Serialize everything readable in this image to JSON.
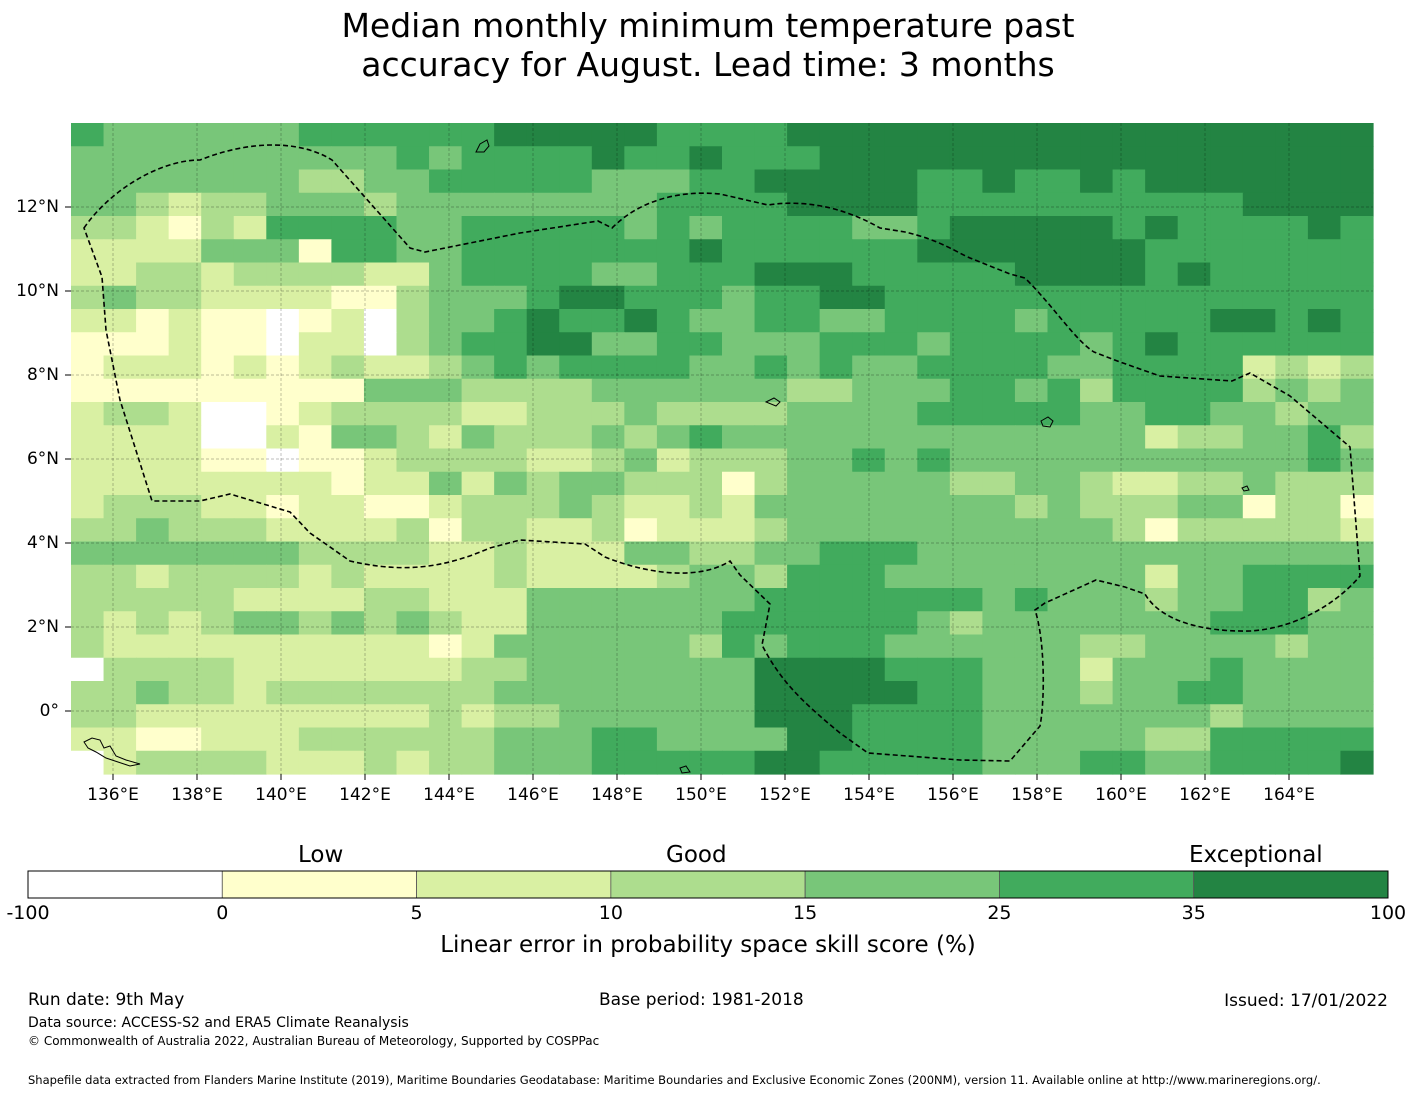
{
  "title_lines": [
    "Median monthly minimum temperature past",
    "accuracy for August. Lead time: 3 months"
  ],
  "map": {
    "lon_range": [
      135,
      166
    ],
    "lat_range": [
      -1.5,
      14
    ],
    "lon_ticks": [
      136,
      138,
      140,
      142,
      144,
      146,
      148,
      150,
      152,
      154,
      156,
      158,
      160,
      162,
      164
    ],
    "lat_ticks": [
      0,
      2,
      4,
      6,
      8,
      10,
      12
    ],
    "lon_tick_labels": [
      "136°E",
      "138°E",
      "140°E",
      "142°E",
      "144°E",
      "146°E",
      "148°E",
      "150°E",
      "152°E",
      "154°E",
      "156°E",
      "158°E",
      "160°E",
      "162°E",
      "164°E"
    ],
    "lat_tick_labels": [
      "0°",
      "2°N",
      "4°N",
      "6°N",
      "8°N",
      "10°N",
      "12°N"
    ],
    "grid_on": true,
    "eez_boundary": "dashed black line"
  },
  "colorbar": {
    "categories": [
      "Low",
      "Good",
      "Exceptional"
    ],
    "tick_labels": [
      "-100",
      "0",
      "5",
      "10",
      "15",
      "25",
      "35",
      "100"
    ],
    "colors": [
      "#ffffff",
      "#ffffcc",
      "#d9f0a3",
      "#addd8e",
      "#78c679",
      "#41ab5d",
      "#238443"
    ],
    "label": "Linear error in probability space skill score (%)"
  },
  "footer": {
    "run_date": "Run date: 9th May",
    "base_period": "Base period: 1981-2018",
    "issued": "Issued: 17/01/2022",
    "data_source": "Data source: ACCESS-S2 and ERA5 Climate Reanalysis",
    "copyright": "© Commonwealth of Australia 2022, Australian Bureau of Meteorology, Supported by COSPPac",
    "shapefile": "Shapefile data extracted from Flanders Marine Institute (2019), Maritime Boundaries Geodatabase: Maritime Boundaries and Exclusive Economic Zones (200NM), version 11. Available online at http://www.marineregions.org/."
  },
  "chart_data": {
    "type": "heatmap",
    "title": "Median monthly minimum temperature past accuracy for August. Lead time: 3 months",
    "xlabel": "",
    "ylabel": "",
    "xlim": [
      135,
      166
    ],
    "ylim": [
      -1.5,
      14
    ],
    "legend": "bottom",
    "colorbar_label": "Linear error in probability space skill score (%)",
    "bins": [
      -100,
      0,
      5,
      10,
      15,
      25,
      35,
      100
    ],
    "cell_size_deg": 0.833,
    "value_encoding": "bin index 0-6 matching colorbar intervals",
    "rows_north_to_south": [
      "5444444555555666665555666666666666666666",
      "4444444444545555655655566666666666666666",
      "4444444334455555444556666655655656666666",
      "4432334443444444445555666655555555556666",
      "3321325555445555545455554456666656555565",
      "2222444155445555555655555566666665555555",
      "2233233332245555445556665555566665655555",
      "3433222211344456655545566555555555555555",
      "2212110120344565565445544555545555566565",
      "1112110220345566445544455545555456555555",
      "1222121232234545555445454455554455552323",
      "1111111114443333444444334445545355553434",
      "2332001233332233343333444455555445544344",
      "2222002144324333434544444444444442334453",
      "2222110112333322342333445454444444444454",
      "2222222212242434433313444443344322334333",
      "2333221221123334322324444444434333441331",
      "3343332222313322312223444444444431333332",
      "4444444333322322244334455544444444444444",
      "3323333232222322223443555444444442445555",
      "3333322223322244444445555555454443445534",
      "3232344343432244444455555543444444455544",
      "3222222222212444444354555444444334444344",
      "0333322222223344444446666555444244454444",
      "3343323333333444444446666655444344554444",
      "3322222222232334444446665555444444434444",
      "2211222333333444554444665555444443355555",
      "0233332223233444555556655555444554455556"
    ],
    "color_map": [
      "#ffffff",
      "#ffffcc",
      "#d9f0a3",
      "#addd8e",
      "#78c679",
      "#41ab5d",
      "#238443"
    ]
  }
}
